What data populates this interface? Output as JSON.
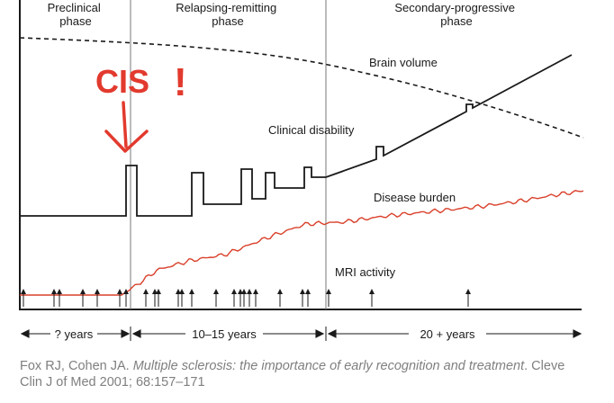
{
  "phases": {
    "preclinical": [
      "Preclinical",
      "phase"
    ],
    "relapsing": [
      "Relapsing-remitting",
      "phase"
    ],
    "secondary": [
      "Secondary-progressive",
      "phase"
    ]
  },
  "curves": {
    "brain_volume": "Brain volume",
    "clinical_disability": "Clinical disability",
    "disease_burden": "Disease burden",
    "mri_activity": "MRI activity"
  },
  "annotation": {
    "cis": "CIS",
    "exclaim": "!"
  },
  "durations": {
    "d1": "? years",
    "d2": "10–15 years",
    "d3": "20 + years"
  },
  "citation": {
    "authors": "Fox RJ, Cohen JA.",
    "title": "Multiple sclerosis: the importance of early recognition and treatment",
    "source": ". Cleve Clin J of Med 2001; 68:157–171"
  },
  "colors": {
    "line": "#1a1a1a",
    "burden": "#d9402b",
    "cis": "#e23a2e",
    "caption": "#7f7f7f"
  }
}
